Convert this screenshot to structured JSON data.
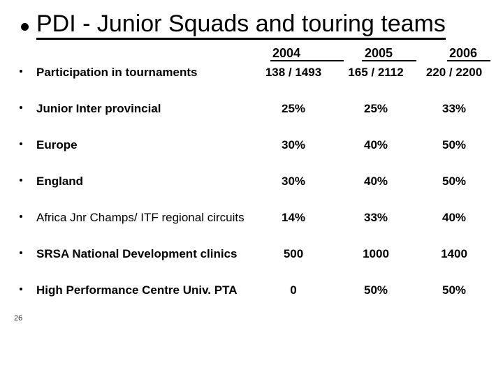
{
  "colors": {
    "background": "#ffffff",
    "text": "#000000",
    "underline": "#000000"
  },
  "slide": {
    "title": "PDI - Junior Squads and touring teams",
    "page_number": "26"
  },
  "table": {
    "year_headers": [
      "2004",
      "2005",
      "2006"
    ],
    "rows": [
      {
        "label": "Participation in tournaments",
        "emphasis": "bold",
        "values": [
          "138 / 1493",
          "165 / 2112",
          "220 / 2200"
        ]
      },
      {
        "label": "Junior Inter provincial",
        "emphasis": "bold",
        "values": [
          "25%",
          "25%",
          "33%"
        ]
      },
      {
        "label": "Europe",
        "emphasis": "bold",
        "values": [
          "30%",
          "40%",
          "50%"
        ]
      },
      {
        "label": "England",
        "emphasis": "bold",
        "values": [
          "30%",
          "40%",
          "50%"
        ]
      },
      {
        "label": "Africa Jnr Champs/ ITF regional circuits",
        "emphasis": "regular",
        "values": [
          "14%",
          "33%",
          "40%"
        ]
      },
      {
        "label": "SRSA National Development clinics",
        "emphasis": "bold",
        "values": [
          "500",
          "1000",
          "1400"
        ]
      },
      {
        "label": "High Performance Centre Univ. PTA",
        "emphasis": "bold",
        "values": [
          "0",
          "50%",
          "50%"
        ]
      }
    ]
  }
}
